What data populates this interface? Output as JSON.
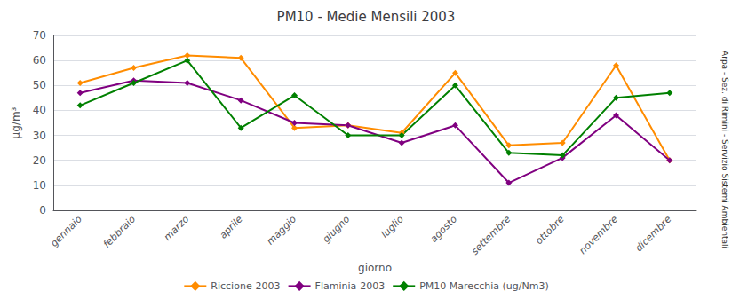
{
  "chart_data": {
    "type": "line",
    "title": "PM10 - Medie Mensili 2003",
    "x_label": "giorno",
    "y_label": "μg/m³",
    "annotations": [
      "Arpa - Sez. di Rimini - Servizio Sistemi Ambientali"
    ],
    "categories": [
      "gennaio",
      "febbraio",
      "marzo",
      "aprile",
      "maggio",
      "giugno",
      "luglio",
      "agosto",
      "settembre",
      "ottobre",
      "novembre",
      "dicembre"
    ],
    "series": [
      {
        "name": "Riccione-2003",
        "color": "#FF8C00",
        "values": [
          51,
          57,
          62,
          61,
          33,
          34,
          31,
          55,
          26,
          27,
          58,
          20
        ]
      },
      {
        "name": "Flaminia-2003",
        "color": "#800080",
        "values": [
          47,
          52,
          51,
          44,
          35,
          34,
          27,
          34,
          11,
          21,
          38,
          20
        ]
      },
      {
        "name": "PM10 Marecchia (ug/Nm3)",
        "color": "#008000",
        "values": [
          42,
          51,
          60,
          33,
          46,
          30,
          30,
          50,
          23,
          22,
          45,
          47
        ]
      }
    ],
    "ylim": [
      0,
      70
    ],
    "yticks": [
      0,
      10,
      20,
      30,
      40,
      50,
      60,
      70
    ],
    "grid": true,
    "legend": "bottom",
    "marker": "diamond"
  }
}
